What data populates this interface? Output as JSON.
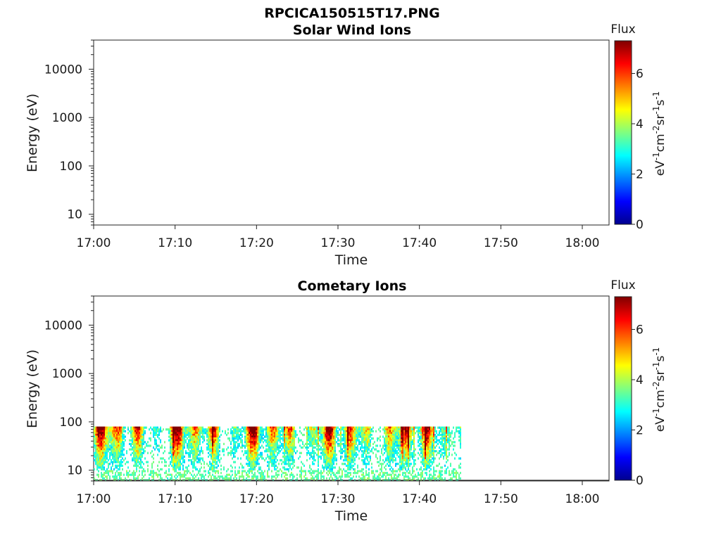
{
  "figure_title": "RPCICA150515T17.PNG",
  "chart_data": [
    {
      "type": "heatmap",
      "title": "Solar Wind Ions",
      "xlabel": "Time",
      "ylabel": "Energy (eV)",
      "x_ticks": [
        "17:00",
        "17:10",
        "17:20",
        "17:30",
        "17:40",
        "17:50",
        "18:00"
      ],
      "y_scale": "log",
      "y_ticks": [
        "10",
        "100",
        "1000",
        "10000"
      ],
      "ylim": [
        6,
        40000
      ],
      "colorbar": {
        "title": "Flux",
        "label": "eV-1cm-2sr-1s-1",
        "ticks": [
          "0",
          "2",
          "4",
          "6"
        ],
        "range": [
          0,
          7.3
        ]
      },
      "data_present": false
    },
    {
      "type": "heatmap",
      "title": "Cometary Ions",
      "xlabel": "Time",
      "ylabel": "Energy (eV)",
      "x_ticks": [
        "17:00",
        "17:10",
        "17:20",
        "17:30",
        "17:40",
        "17:50",
        "18:00"
      ],
      "y_scale": "log",
      "y_ticks": [
        "10",
        "100",
        "1000",
        "10000"
      ],
      "ylim": [
        6,
        40000
      ],
      "colorbar": {
        "title": "Flux",
        "label": "eV-1cm-2sr-1s-1",
        "ticks": [
          "0",
          "2",
          "4",
          "6"
        ],
        "range": [
          0,
          7.3
        ]
      },
      "data_present": true,
      "data_time_range": [
        "17:00",
        "17:45"
      ],
      "energy_range_eV": [
        6,
        80
      ]
    }
  ]
}
